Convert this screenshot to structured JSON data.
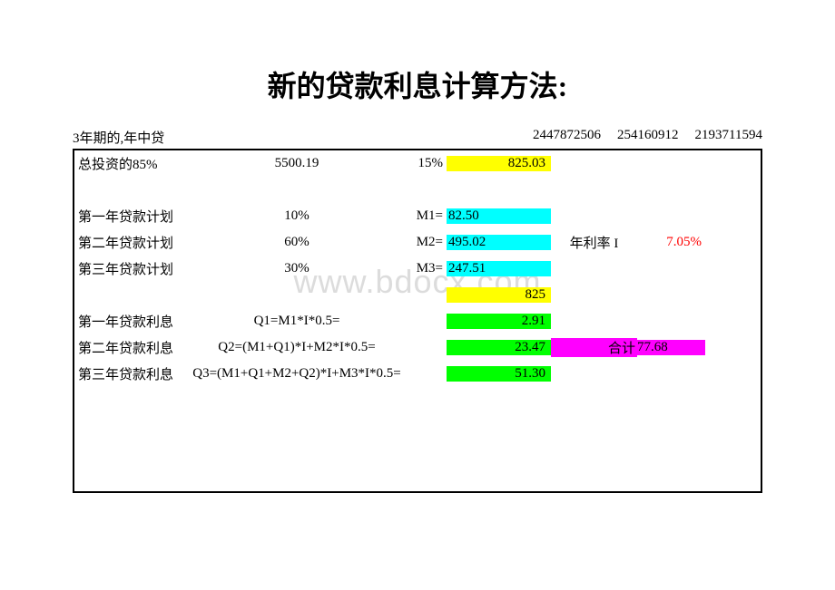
{
  "title": "新的贷款利息计算方法:",
  "header": {
    "term_label": "3年期的,年中贷",
    "num1": "2447872506",
    "num2": "254160912",
    "num3": "2193711594"
  },
  "row_investment": {
    "label": "总投资的85%",
    "value": "5500.19",
    "percent": "15%",
    "result": "825.03"
  },
  "row_y1_plan": {
    "label": "第一年贷款计划",
    "value": "10%",
    "var": "M1=",
    "result": "82.50"
  },
  "row_y2_plan": {
    "label": "第二年贷款计划",
    "value": "60%",
    "var": "M2=",
    "result": "495.02",
    "rate_label": "年利率 I",
    "rate_value": "7.05%"
  },
  "row_y3_plan": {
    "label": "第三年贷款计划",
    "value": "30%",
    "var": "M3=",
    "result": "247.51"
  },
  "row_sum": {
    "value": "825"
  },
  "row_y1_interest": {
    "label": "第一年贷款利息",
    "formula": "Q1=M1*I*0.5=",
    "result": "2.91"
  },
  "row_y2_interest": {
    "label": "第二年贷款利息",
    "formula": "Q2=(M1+Q1)*I+M2*I*0.5=",
    "result": "23.47",
    "total_label": "合计",
    "total_value": "77.68"
  },
  "row_y3_interest": {
    "label": "第三年贷款利息",
    "formula": "Q3=(M1+Q1+M2+Q2)*I+M3*I*0.5=",
    "result": "51.30"
  },
  "watermark": "www.bdocx.com",
  "colors": {
    "yellow": "#ffff00",
    "cyan": "#00ffff",
    "green": "#00ff00",
    "magenta": "#ff00ff",
    "red": "#ff0000",
    "black": "#000000",
    "white": "#ffffff",
    "watermark_gray": "#dcdcdc"
  }
}
